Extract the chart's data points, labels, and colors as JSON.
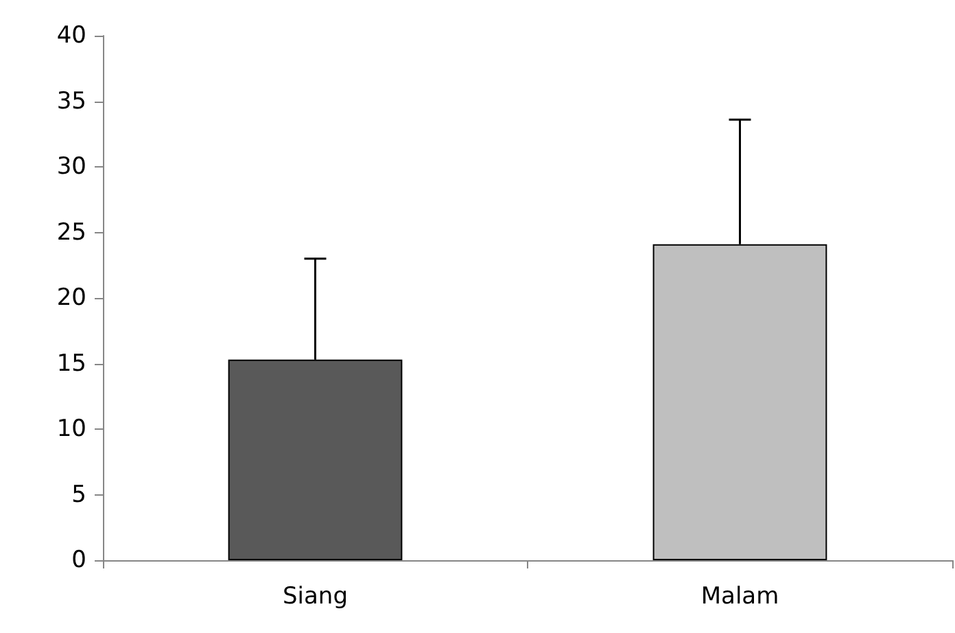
{
  "chart_data": {
    "type": "bar",
    "categories": [
      "Siang",
      "Malam"
    ],
    "values": [
      15.3,
      24.1
    ],
    "colors": [
      "#595959",
      "#bfbfbf"
    ],
    "errors": [
      [
        15.3,
        23.0
      ],
      [
        24.1,
        33.6
      ]
    ],
    "ylim": [
      0,
      40
    ],
    "yticks": [
      0,
      5,
      10,
      15,
      20,
      25,
      30,
      35,
      40
    ],
    "grid": false
  }
}
